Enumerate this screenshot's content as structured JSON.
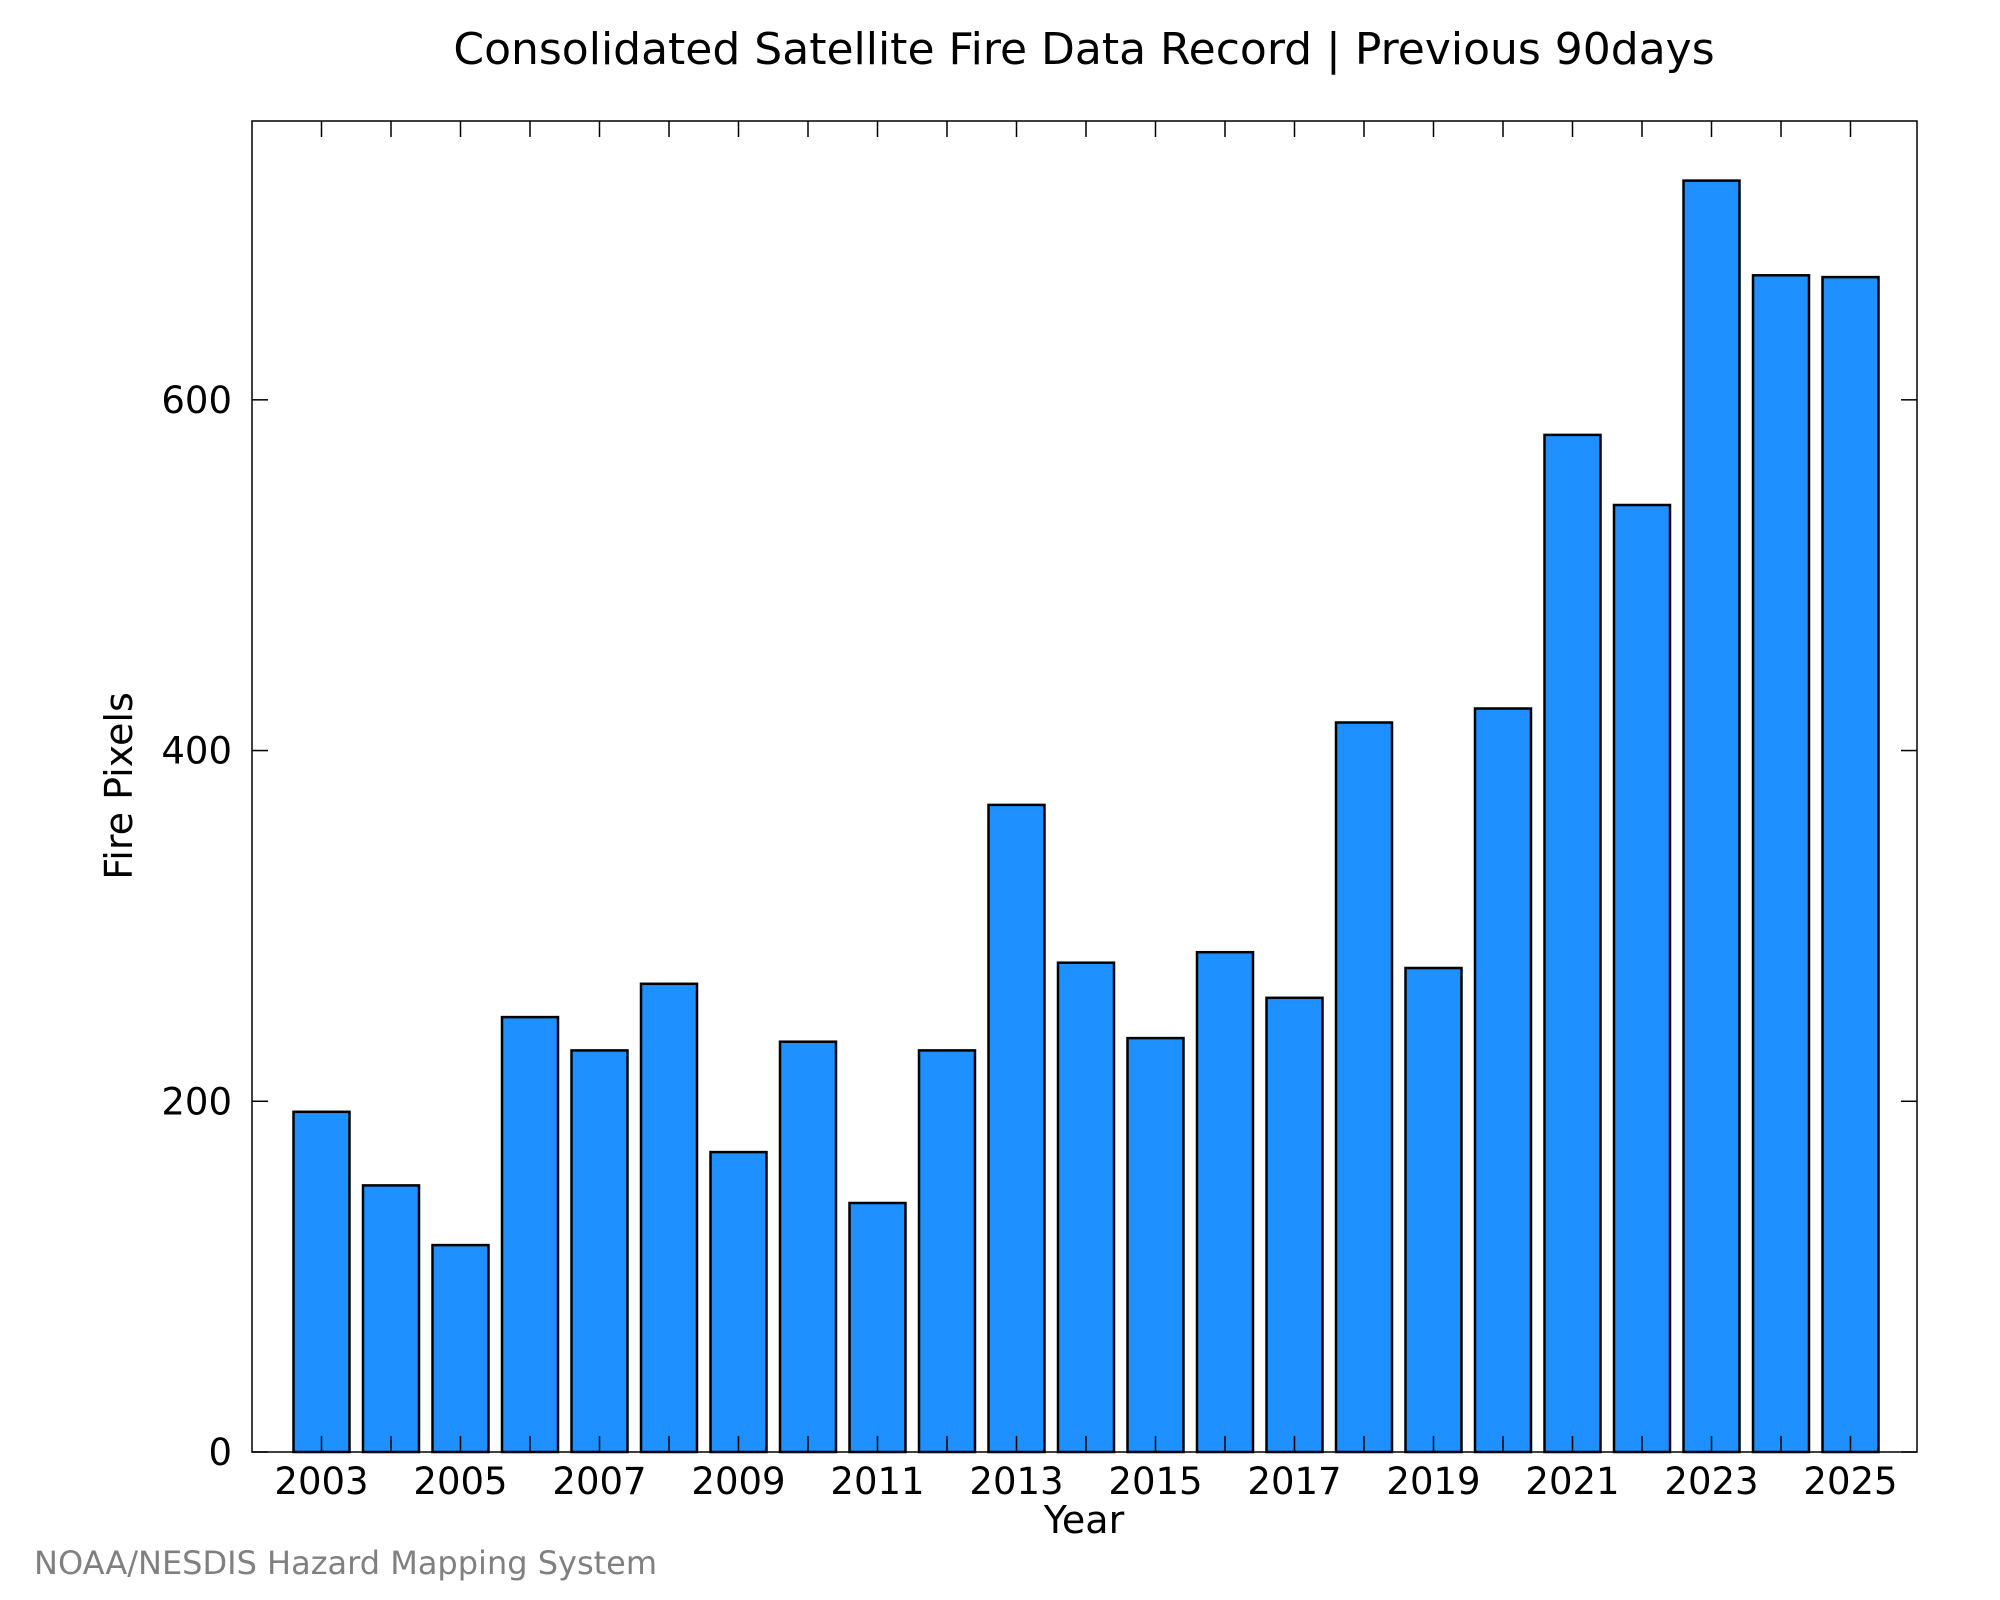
{
  "chart_data": {
    "type": "bar",
    "title": "Consolidated Satellite Fire Data Record | Previous 90days",
    "xlabel": "Year",
    "ylabel": "Fire Pixels",
    "categories": [
      "2003",
      "2004",
      "2005",
      "2006",
      "2007",
      "2008",
      "2009",
      "2010",
      "2011",
      "2012",
      "2013",
      "2014",
      "2015",
      "2016",
      "2017",
      "2018",
      "2019",
      "2020",
      "2021",
      "2022",
      "2023",
      "2024",
      "2025"
    ],
    "x_tick_labels": [
      "2003",
      "2005",
      "2007",
      "2009",
      "2011",
      "2013",
      "2015",
      "2017",
      "2019",
      "2021",
      "2023",
      "2025"
    ],
    "y_tick_labels": [
      "0",
      "200",
      "400",
      "600"
    ],
    "y_ticks": [
      0,
      200,
      400,
      600
    ],
    "values": [
      194,
      152,
      118,
      248,
      229,
      267,
      171,
      234,
      142,
      229,
      369,
      279,
      236,
      285,
      259,
      416,
      276,
      424,
      580,
      540,
      725,
      671,
      670
    ],
    "ylim": [
      0,
      759
    ],
    "grid": false,
    "legend": "none",
    "bar_color": "#1E90FF",
    "bar_edge_color": "#000000",
    "credit": "NOAA/NESDIS Hazard Mapping System"
  }
}
